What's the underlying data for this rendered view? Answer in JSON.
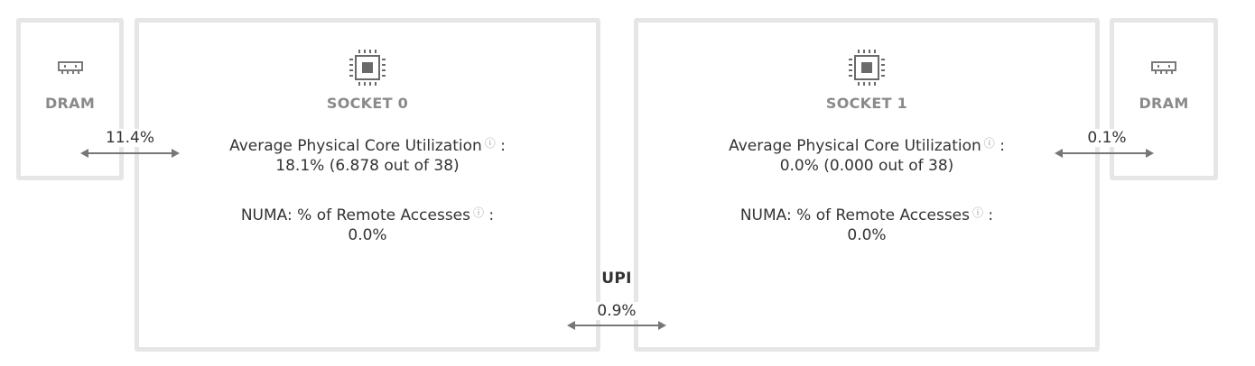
{
  "dram_left": {
    "label": "DRAM",
    "icon": "memory-icon"
  },
  "dram_right": {
    "label": "DRAM",
    "icon": "memory-icon"
  },
  "links": {
    "dram_left_bandwidth": "11.4%",
    "dram_right_bandwidth": "0.1%",
    "upi_label": "UPI",
    "upi_bandwidth": "0.9%"
  },
  "sockets": [
    {
      "label": "SOCKET 0",
      "icon": "cpu-chip-icon",
      "core_util_label": "Average Physical Core Utilization",
      "core_util_value": "18.1% (6.878 out of 38)",
      "numa_label": "NUMA: % of Remote Accesses",
      "numa_value": "0.0%"
    },
    {
      "label": "SOCKET 1",
      "icon": "cpu-chip-icon",
      "core_util_label": "Average Physical Core Utilization",
      "core_util_value": "0.0% (0.000 out of 38)",
      "numa_label": "NUMA: % of Remote Accesses",
      "numa_value": "0.0%"
    }
  ],
  "help_glyph": "?",
  "colon": ":",
  "colors": {
    "border": "#e6e6e6",
    "muted_text": "#8a8a8a",
    "text": "#333333",
    "arrow": "#777777"
  }
}
